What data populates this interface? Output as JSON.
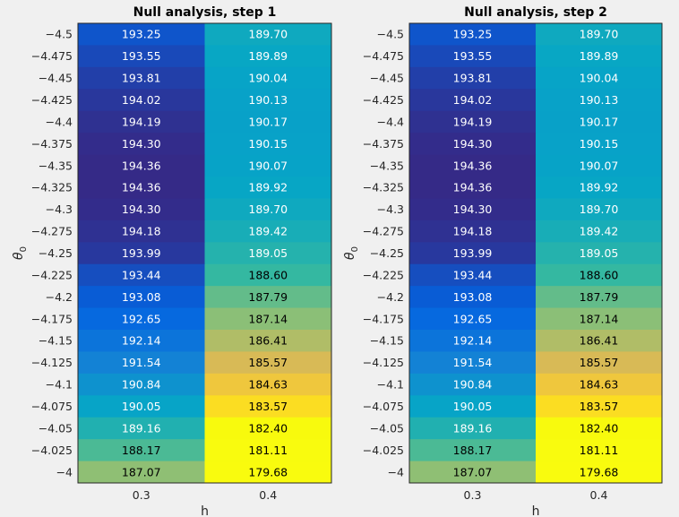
{
  "chart_data": [
    {
      "type": "heatmap",
      "title": "Null analysis, step 1",
      "xlabel": "h",
      "ylabel": "θ",
      "ylabel_subscript": "0",
      "x": [
        "0.3",
        "0.4"
      ],
      "y": [
        "-4.5",
        "-4.475",
        "-4.45",
        "-4.425",
        "-4.4",
        "-4.375",
        "-4.35",
        "-4.325",
        "-4.3",
        "-4.275",
        "-4.25",
        "-4.225",
        "-4.2",
        "-4.175",
        "-4.15",
        "-4.125",
        "-4.1",
        "-4.075",
        "-4.05",
        "-4.025",
        "-4"
      ],
      "values": [
        [
          "193.25",
          "189.70"
        ],
        [
          "193.55",
          "189.89"
        ],
        [
          "193.81",
          "190.04"
        ],
        [
          "194.02",
          "190.13"
        ],
        [
          "194.19",
          "190.17"
        ],
        [
          "194.30",
          "190.15"
        ],
        [
          "194.36",
          "190.07"
        ],
        [
          "194.36",
          "189.92"
        ],
        [
          "194.30",
          "189.70"
        ],
        [
          "194.18",
          "189.42"
        ],
        [
          "193.99",
          "189.05"
        ],
        [
          "193.44",
          "188.60"
        ],
        [
          "193.08",
          "187.79"
        ],
        [
          "192.65",
          "187.14"
        ],
        [
          "192.14",
          "186.41"
        ],
        [
          "191.54",
          "185.57"
        ],
        [
          "190.84",
          "184.63"
        ],
        [
          "190.05",
          "183.57"
        ],
        [
          "189.16",
          "182.40"
        ],
        [
          "188.17",
          "181.11"
        ],
        [
          "187.07",
          "179.68"
        ]
      ],
      "colormap": "parula"
    },
    {
      "type": "heatmap",
      "title": "Null analysis, step 2",
      "xlabel": "h",
      "ylabel": "θ",
      "ylabel_subscript": "0",
      "x": [
        "0.3",
        "0.4"
      ],
      "y": [
        "-4.5",
        "-4.475",
        "-4.45",
        "-4.425",
        "-4.4",
        "-4.375",
        "-4.35",
        "-4.325",
        "-4.3",
        "-4.275",
        "-4.25",
        "-4.225",
        "-4.2",
        "-4.175",
        "-4.15",
        "-4.125",
        "-4.1",
        "-4.075",
        "-4.05",
        "-4.025",
        "-4"
      ],
      "values": [
        [
          "193.25",
          "189.70"
        ],
        [
          "193.55",
          "189.89"
        ],
        [
          "193.81",
          "190.04"
        ],
        [
          "194.02",
          "190.13"
        ],
        [
          "194.19",
          "190.17"
        ],
        [
          "194.30",
          "190.15"
        ],
        [
          "194.36",
          "190.07"
        ],
        [
          "194.36",
          "189.92"
        ],
        [
          "194.30",
          "189.70"
        ],
        [
          "194.18",
          "189.42"
        ],
        [
          "193.99",
          "189.05"
        ],
        [
          "193.44",
          "188.60"
        ],
        [
          "193.08",
          "187.79"
        ],
        [
          "192.65",
          "187.14"
        ],
        [
          "192.14",
          "186.41"
        ],
        [
          "191.54",
          "185.57"
        ],
        [
          "190.84",
          "184.63"
        ],
        [
          "190.05",
          "183.57"
        ],
        [
          "189.16",
          "182.40"
        ],
        [
          "188.17",
          "181.11"
        ],
        [
          "187.07",
          "179.68"
        ]
      ],
      "colormap": "parula"
    }
  ]
}
